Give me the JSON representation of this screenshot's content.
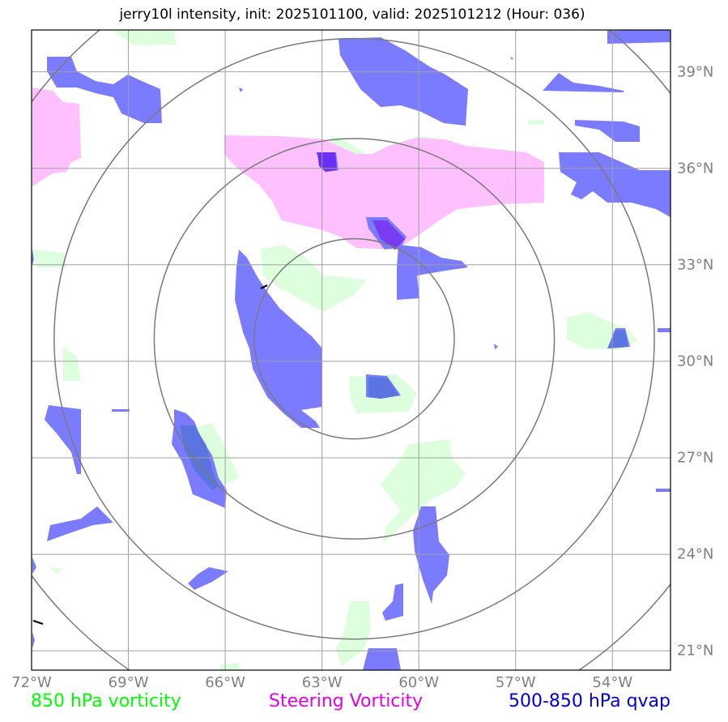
{
  "title": "jerry10l intensity, init: 2025101100, valid: 2025101212 (Hour: 036)",
  "map": {
    "lon_range": [
      -72,
      -52.2
    ],
    "lat_range": [
      20.4,
      40.3
    ],
    "lon_ticks": [
      -72,
      -69,
      -66,
      -63,
      -60,
      -57,
      -54
    ],
    "lat_ticks": [
      21,
      24,
      27,
      30,
      33,
      36,
      39
    ],
    "lon_labels": [
      "72°W",
      "69°W",
      "66°W",
      "63°W",
      "60°W",
      "57°W",
      "54°W"
    ],
    "lat_labels": [
      "39°N",
      "36°N",
      "33°N",
      "30°N",
      "27°N",
      "24°N",
      "21°N"
    ],
    "storm_center": {
      "lon": -62.0,
      "lat": 30.7
    },
    "range_rings_deg": [
      3.1,
      6.2,
      9.3,
      12.4
    ],
    "grid": true
  },
  "legend": [
    {
      "label": "850 hPa vorticity",
      "color": "#00ff00"
    },
    {
      "label": "Steering Vorticity",
      "color": "#e600e6"
    },
    {
      "label": "500-850 hPa qvap",
      "color": "#0000dd"
    }
  ],
  "colors": {
    "vorticity_850": "#ddffdd",
    "steering_vorticity": "#ffc0ff",
    "qvap": "#7b7bff",
    "grid": "#a0a0a0",
    "rings": "#7a7a7a"
  }
}
